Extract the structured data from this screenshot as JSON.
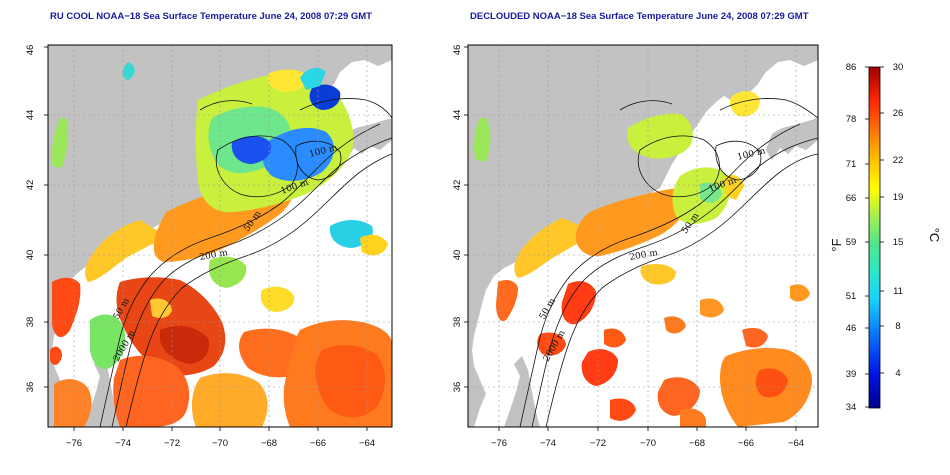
{
  "left_panel": {
    "title": "RU COOL NOAA−18 Sea Surface Temperature June 24, 2008 07:29 GMT"
  },
  "right_panel": {
    "title": "DECLOUDED NOAA−18 Sea Surface Temperature June 24, 2008 07:29 GMT"
  },
  "axes": {
    "lon_ticks": [
      "−76",
      "−74",
      "−72",
      "−70",
      "−68",
      "−66",
      "−64"
    ],
    "lat_ticks": [
      "36",
      "38",
      "40",
      "42",
      "44",
      "46"
    ]
  },
  "contour_labels": [
    "100 m",
    "100 m",
    "50 m",
    "200 m",
    "50 m",
    "2000 m"
  ],
  "colorbar": {
    "unit_f": "°F",
    "unit_c": "°C",
    "f_ticks": [
      "86",
      "78",
      "71",
      "66",
      "59",
      "51",
      "46",
      "39",
      "34"
    ],
    "c_ticks": [
      "30",
      "26",
      "22",
      "19",
      "15",
      "11",
      "8",
      "4"
    ]
  },
  "colors": {
    "land": "#c2c2c2",
    "ocean": "#ffffff",
    "title": "#1a1aa0"
  }
}
